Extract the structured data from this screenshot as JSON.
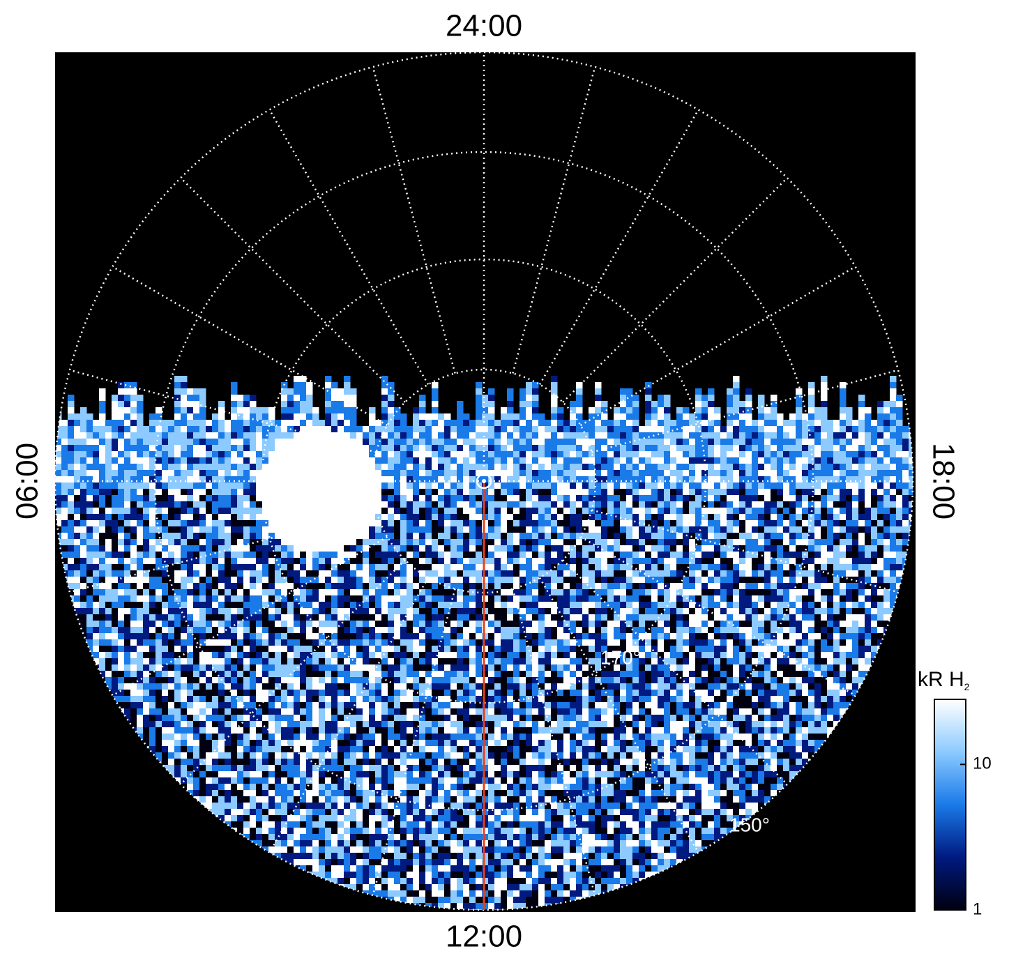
{
  "chart_data": {
    "type": "polar-image",
    "time_labels": {
      "top": "24:00",
      "bottom": "12:00",
      "left": "06:00",
      "right": "18:00"
    },
    "latitude_labels": [
      {
        "value": 170,
        "label": "170°"
      },
      {
        "value": 150,
        "label": "150°"
      }
    ],
    "colorbar": {
      "title": "kR H",
      "title_subscript": "2",
      "scale": "log",
      "clim": [
        1,
        28
      ],
      "ticks": [
        1,
        10
      ],
      "colors": [
        "#000010",
        "#001a80",
        "#1a7ae8",
        "#8ccaff",
        "#ffffff"
      ]
    },
    "line_color": "#e8401a"
  }
}
